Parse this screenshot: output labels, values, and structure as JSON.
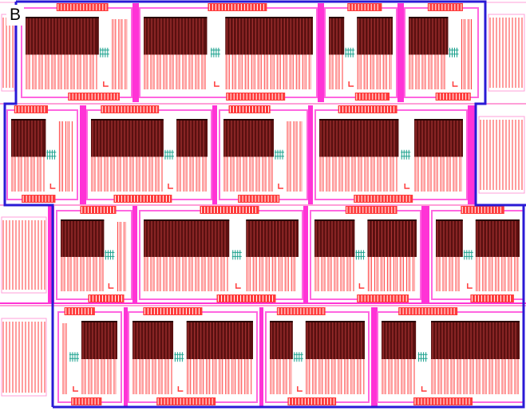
{
  "panel_label": "B",
  "colors": {
    "background": "#ffffff",
    "metal": "#ff3b3b",
    "metal_light": "#ff8a8a",
    "poly_dark": "#5a1010",
    "magenta": "#ff33d6",
    "magenta_light": "#ff66e0",
    "outline": "#2a1ad6",
    "teal": "#18a08c",
    "thin_line": "#ff9fd8"
  },
  "rows": [
    {
      "cells": [
        {
          "kind": "edge"
        },
        {
          "kind": "cell",
          "split": 0.82,
          "dark": [
            1,
            0
          ],
          "contacts": true
        },
        {
          "kind": "cell",
          "split": 0.42,
          "dark": [
            1,
            1
          ],
          "contacts": true
        },
        {
          "kind": "cell",
          "split": 0.3,
          "dark": [
            1,
            1
          ],
          "contacts": true
        },
        {
          "kind": "cell",
          "split": 0.75,
          "dark": [
            1,
            0
          ],
          "contacts": true
        },
        {
          "kind": "edge"
        }
      ]
    },
    {
      "cells": [
        {
          "kind": "cell",
          "split": 0.7,
          "dark": [
            1,
            0
          ],
          "contacts": true
        },
        {
          "kind": "cell",
          "split": 0.7,
          "dark": [
            1,
            1
          ],
          "contacts": true
        },
        {
          "kind": "cell",
          "split": 0.75,
          "dark": [
            1,
            0
          ],
          "contacts": true
        },
        {
          "kind": "cell",
          "split": 0.62,
          "dark": [
            1,
            1
          ],
          "contacts": true
        },
        {
          "kind": "edge"
        }
      ]
    },
    {
      "cells": [
        {
          "kind": "edge"
        },
        {
          "kind": "cell",
          "split": 0.8,
          "dark": [
            1,
            0
          ],
          "contacts": true
        },
        {
          "kind": "cell",
          "split": 0.62,
          "dark": [
            1,
            1
          ],
          "contacts": true
        },
        {
          "kind": "cell",
          "split": 0.45,
          "dark": [
            1,
            1
          ],
          "contacts": true
        },
        {
          "kind": "cell",
          "split": 0.38,
          "dark": [
            1,
            1
          ],
          "contacts": true
        }
      ]
    },
    {
      "cells": [
        {
          "kind": "edge"
        },
        {
          "kind": "cell",
          "split": 0.15,
          "dark": [
            0,
            1
          ],
          "contacts": true
        },
        {
          "kind": "cell",
          "split": 0.38,
          "dark": [
            1,
            1
          ],
          "contacts": true
        },
        {
          "kind": "cell",
          "split": 0.28,
          "dark": [
            1,
            1
          ],
          "contacts": true
        },
        {
          "kind": "cell",
          "split": 0.28,
          "dark": [
            1,
            1
          ],
          "contacts": true
        }
      ]
    }
  ]
}
